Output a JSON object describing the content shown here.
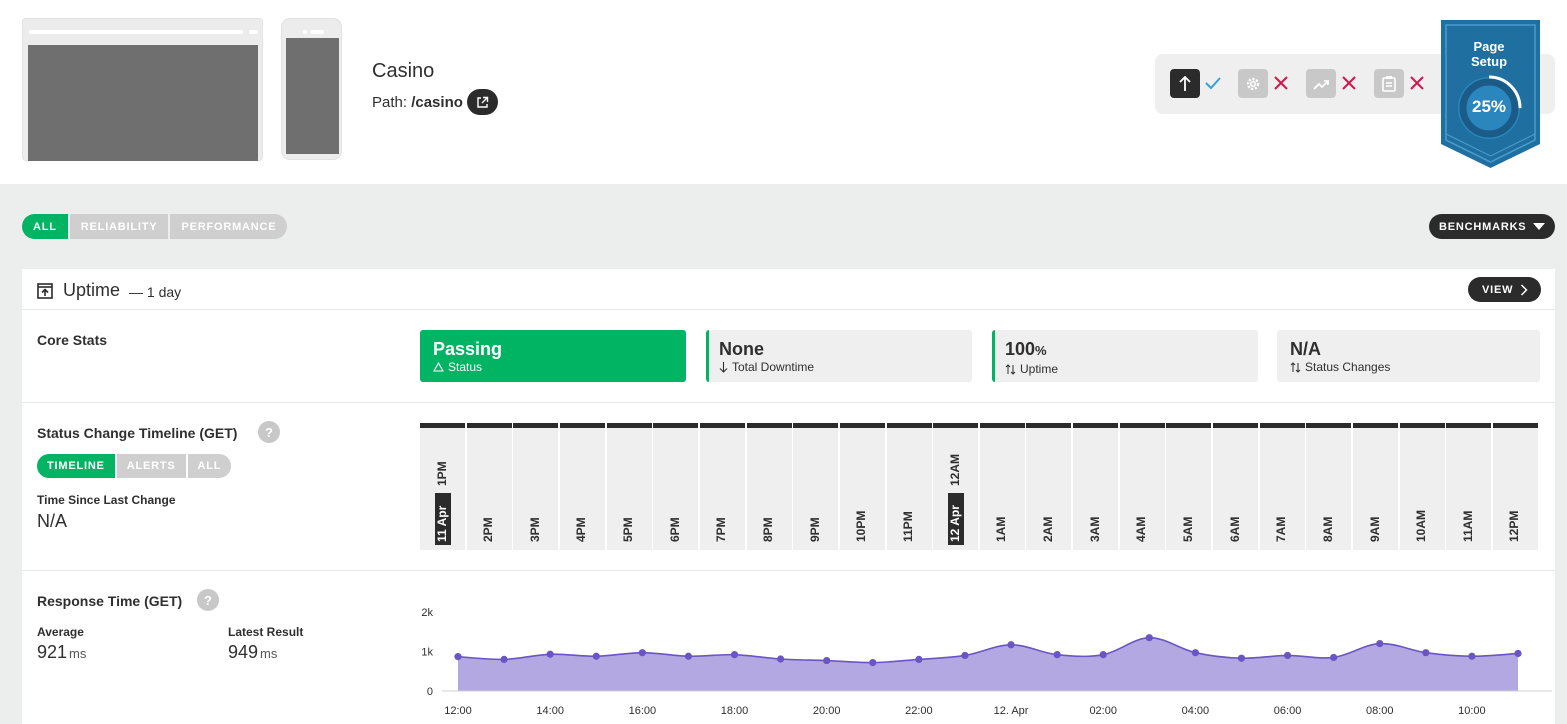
{
  "header": {
    "page_name": "Casino",
    "path_label": "Path:",
    "path_value": "/casino",
    "badge": {
      "title_line1": "Page",
      "title_line2": "Setup",
      "percent": "25%",
      "progress": 0.25
    },
    "setup_steps": [
      {
        "icon": "upload-arrow-icon",
        "status": "done"
      },
      {
        "icon": "gear-icon",
        "status": "missing"
      },
      {
        "icon": "trend-icon",
        "status": "missing"
      },
      {
        "icon": "clipboard-icon",
        "status": "missing"
      }
    ]
  },
  "filters": {
    "tabs": [
      "ALL",
      "RELIABILITY",
      "PERFORMANCE"
    ],
    "active": "ALL",
    "benchmarks_label": "BENCHMARKS"
  },
  "uptime": {
    "title": "Uptime",
    "subtitle": "— 1 day",
    "view_label": "VIEW",
    "core_stats": {
      "label": "Core Stats",
      "cards": [
        {
          "value": "Passing",
          "label": "Status",
          "icon": "warning-icon"
        },
        {
          "value": "None",
          "label": "Total Downtime",
          "icon": "arrow-down-icon"
        },
        {
          "value": "100",
          "unit": "%",
          "label": "Uptime",
          "icon": "up-down-arrows-icon"
        },
        {
          "value": "N/A",
          "label": "Status Changes",
          "icon": "up-down-arrows-icon"
        }
      ]
    },
    "timeline": {
      "label": "Status Change Timeline (GET)",
      "help": "?",
      "tabs": [
        "TIMELINE",
        "ALERTS",
        "ALL"
      ],
      "active_tab": "TIMELINE",
      "since_label": "Time Since Last Change",
      "since_value": "N/A",
      "hours": [
        "1PM",
        "2PM",
        "3PM",
        "4PM",
        "5PM",
        "6PM",
        "7PM",
        "8PM",
        "9PM",
        "10PM",
        "11PM",
        "12AM",
        "1AM",
        "2AM",
        "3AM",
        "4AM",
        "5AM",
        "6AM",
        "7AM",
        "8AM",
        "9AM",
        "10AM",
        "11AM",
        "12PM"
      ],
      "day_markers": [
        {
          "index": 0,
          "label": "11 Apr"
        },
        {
          "index": 11,
          "label": "12 Apr"
        }
      ]
    },
    "response": {
      "label": "Response Time (GET)",
      "help": "?",
      "average_label": "Average",
      "average_value": "921",
      "average_unit": "ms",
      "latest_label": "Latest Result",
      "latest_value": "949",
      "latest_unit": "ms"
    }
  },
  "chart_data": {
    "type": "area",
    "title": "",
    "xlabel": "",
    "ylabel": "",
    "y_ticks": [
      "2k",
      "1k",
      "0"
    ],
    "ylim": [
      0,
      2000
    ],
    "x_tick_labels": [
      "12:00",
      "14:00",
      "16:00",
      "18:00",
      "20:00",
      "22:00",
      "12. Apr",
      "02:00",
      "04:00",
      "06:00",
      "08:00",
      "10:00"
    ],
    "x": [
      "12:00",
      "13:00",
      "14:00",
      "15:00",
      "16:00",
      "17:00",
      "18:00",
      "19:00",
      "20:00",
      "21:00",
      "22:00",
      "23:00",
      "00:00",
      "01:00",
      "02:00",
      "03:00",
      "04:00",
      "05:00",
      "06:00",
      "07:00",
      "08:00",
      "09:00",
      "10:00",
      "11:00"
    ],
    "series": [
      {
        "values": [
          870,
          800,
          930,
          880,
          970,
          880,
          920,
          810,
          770,
          720,
          800,
          900,
          1170,
          920,
          920,
          1350,
          970,
          830,
          900,
          850,
          1200,
          970,
          880,
          950
        ]
      }
    ],
    "color": "#6a55c2",
    "fill": "#b3a8e2",
    "grid": false,
    "legend": "none"
  }
}
